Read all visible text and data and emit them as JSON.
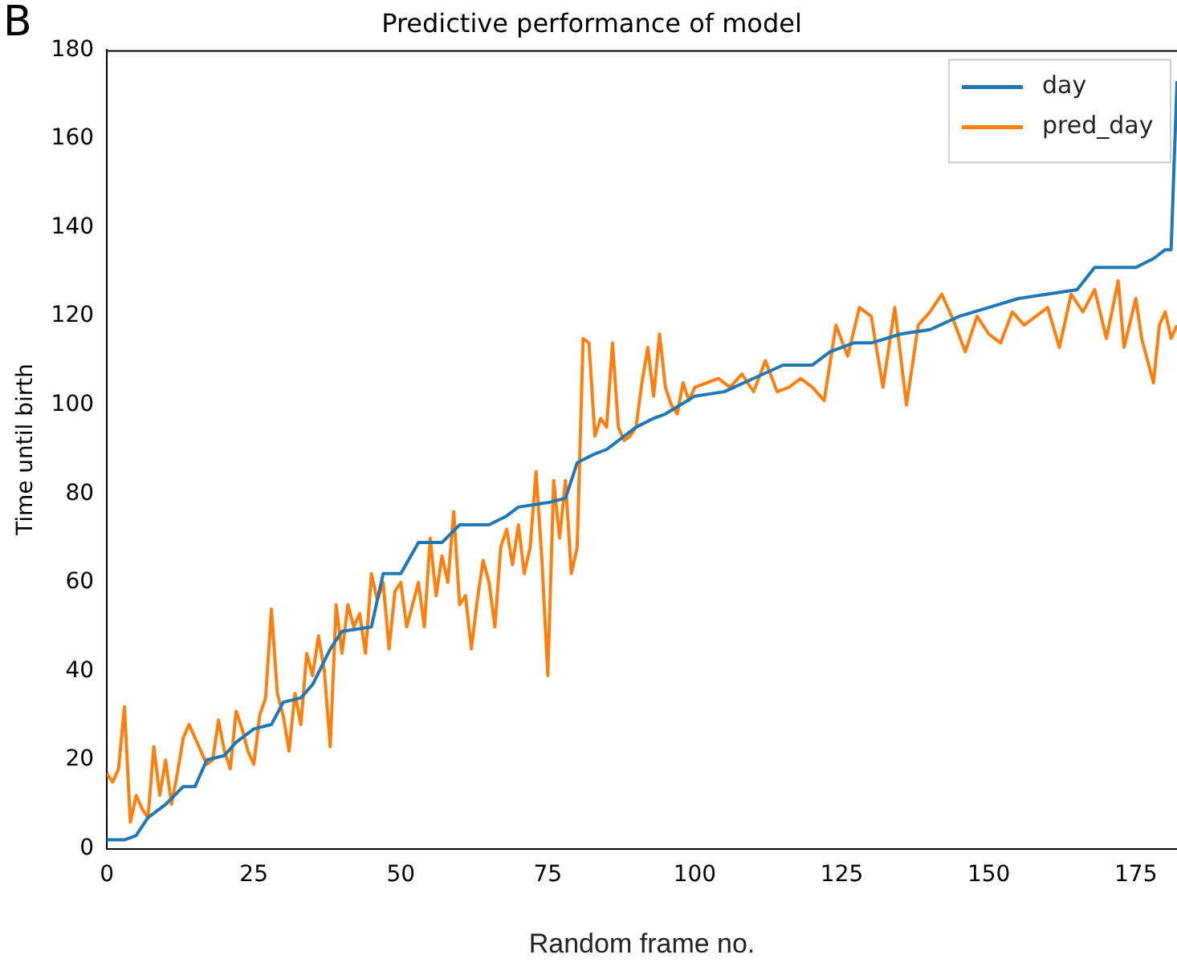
{
  "chart_data": {
    "type": "line",
    "title": "Predictive performance of model",
    "xlabel": "Random frame no.",
    "ylabel": "Time until birth",
    "annotations": [
      "B"
    ],
    "xlim": [
      0,
      182
    ],
    "xticks": [
      0,
      25,
      50,
      75,
      100,
      125,
      150,
      175
    ],
    "ylim": [
      0,
      180
    ],
    "yticks": [
      0,
      20,
      40,
      60,
      80,
      100,
      120,
      140,
      160,
      180
    ],
    "grid": false,
    "legend": "top right",
    "marker": "none",
    "line_style": "solid",
    "series": [
      {
        "name": "day",
        "color": "#1f77b4",
        "x": [
          0,
          3,
          5,
          7,
          10,
          13,
          15,
          17,
          20,
          22,
          25,
          28,
          30,
          33,
          35,
          38,
          40,
          45,
          47,
          50,
          53,
          57,
          60,
          65,
          68,
          70,
          75,
          78,
          80,
          83,
          85,
          88,
          90,
          93,
          95,
          100,
          105,
          110,
          115,
          120,
          123,
          127,
          130,
          135,
          140,
          145,
          150,
          155,
          160,
          165,
          168,
          175,
          178,
          180,
          181,
          182
        ],
        "values": [
          2,
          2,
          3,
          7,
          10,
          14,
          14,
          20,
          21,
          24,
          27,
          28,
          33,
          34,
          37,
          45,
          49,
          50,
          62,
          62,
          69,
          69,
          73,
          73,
          75,
          77,
          78,
          79,
          87,
          89,
          90,
          93,
          95,
          97,
          98,
          102,
          103,
          106,
          109,
          109,
          112,
          114,
          114,
          116,
          117,
          120,
          122,
          124,
          125,
          126,
          131,
          131,
          133,
          135,
          135,
          173
        ]
      },
      {
        "name": "pred_day",
        "color": "#ff7f0e",
        "x": [
          0,
          1,
          2,
          3,
          4,
          5,
          6,
          7,
          8,
          9,
          10,
          11,
          12,
          13,
          14,
          15,
          16,
          17,
          18,
          19,
          20,
          21,
          22,
          23,
          24,
          25,
          26,
          27,
          28,
          29,
          30,
          31,
          32,
          33,
          34,
          35,
          36,
          37,
          38,
          39,
          40,
          41,
          42,
          43,
          44,
          45,
          46,
          47,
          48,
          49,
          50,
          51,
          52,
          53,
          54,
          55,
          56,
          57,
          58,
          59,
          60,
          61,
          62,
          63,
          64,
          65,
          66,
          67,
          68,
          69,
          70,
          71,
          72,
          73,
          74,
          75,
          76,
          77,
          78,
          79,
          80,
          81,
          82,
          83,
          84,
          85,
          86,
          87,
          88,
          89,
          90,
          91,
          92,
          93,
          94,
          95,
          96,
          97,
          98,
          99,
          100,
          102,
          104,
          106,
          108,
          110,
          112,
          114,
          116,
          118,
          120,
          122,
          124,
          126,
          128,
          130,
          132,
          134,
          136,
          138,
          140,
          142,
          144,
          146,
          148,
          150,
          152,
          154,
          156,
          158,
          160,
          162,
          164,
          166,
          168,
          170,
          172,
          173,
          175,
          176,
          178,
          179,
          180,
          181,
          182
        ],
        "values": [
          17,
          15,
          18,
          32,
          6,
          12,
          9,
          7,
          23,
          12,
          20,
          10,
          17,
          25,
          28,
          25,
          22,
          19,
          20,
          29,
          22,
          18,
          31,
          27,
          22,
          19,
          30,
          34,
          54,
          35,
          30,
          22,
          35,
          28,
          44,
          39,
          48,
          40,
          23,
          55,
          44,
          55,
          50,
          53,
          44,
          62,
          56,
          60,
          45,
          58,
          60,
          50,
          55,
          60,
          50,
          70,
          57,
          66,
          60,
          76,
          55,
          57,
          45,
          56,
          65,
          60,
          50,
          68,
          72,
          64,
          73,
          62,
          68,
          85,
          65,
          39,
          83,
          70,
          83,
          62,
          68,
          115,
          114,
          93,
          97,
          95,
          114,
          95,
          92,
          93,
          95,
          105,
          113,
          102,
          116,
          104,
          100,
          98,
          105,
          101,
          104,
          105,
          106,
          104,
          107,
          103,
          110,
          103,
          104,
          106,
          104,
          101,
          118,
          111,
          122,
          120,
          104,
          122,
          100,
          118,
          121,
          125,
          119,
          112,
          120,
          116,
          114,
          121,
          118,
          120,
          122,
          113,
          125,
          121,
          126,
          115,
          128,
          113,
          124,
          115,
          105,
          118,
          121,
          115,
          118
        ]
      }
    ]
  }
}
